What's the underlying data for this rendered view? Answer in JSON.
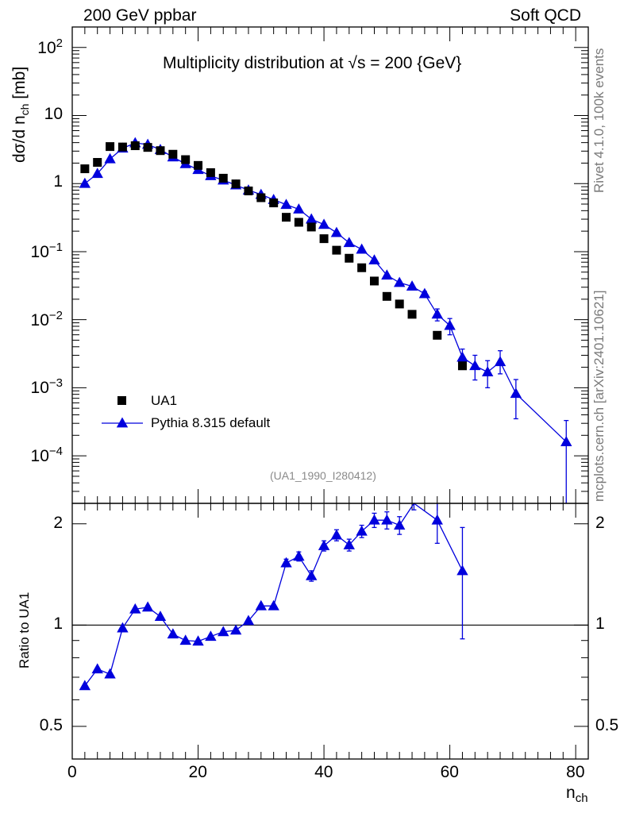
{
  "header": {
    "left": "200 GeV ppbar",
    "right": "Soft QCD"
  },
  "side_labels": {
    "top": "Rivet 4.1.0,  100k events",
    "bottom": "mcplots.cern.ch [arXiv:2401.10621]"
  },
  "chart_data": [
    {
      "type": "scatter",
      "panel": "main",
      "title": "Multiplicity distribution at √s = 200 {GeV}",
      "ylabel": "dσ/d n_ch [mb]",
      "ylabel_main": "dσ/d n",
      "ylabel_sub": "ch",
      "ylabel_unit": "[mb]",
      "yscale": "log",
      "ylim": [
        2e-05,
        200
      ],
      "xlim": [
        0,
        82
      ],
      "analysis_tag": "(UA1_1990_I280412)",
      "ytick_labels": [
        {
          "base": "10",
          "exp": "2",
          "value": 100
        },
        {
          "base": "10",
          "exp": "",
          "value": 10
        },
        {
          "base": "1",
          "exp": "",
          "value": 1
        },
        {
          "base": "10",
          "exp": "−1",
          "value": 0.1
        },
        {
          "base": "10",
          "exp": "−2",
          "value": 0.01
        },
        {
          "base": "10",
          "exp": "−3",
          "value": 0.001
        },
        {
          "base": "10",
          "exp": "−4",
          "value": 0.0001
        }
      ],
      "legend": [
        {
          "label": "UA1",
          "marker": "square",
          "color": "#000000"
        },
        {
          "label": "Pythia 8.315 default",
          "marker": "triangle",
          "color": "#0000dd"
        }
      ],
      "series": [
        {
          "name": "UA1",
          "x": [
            2,
            4,
            6,
            8,
            10,
            12,
            14,
            16,
            18,
            20,
            22,
            24,
            26,
            28,
            30,
            32,
            34,
            36,
            38,
            40,
            42,
            44,
            46,
            48,
            50,
            52,
            54,
            58,
            62
          ],
          "values": [
            1.65,
            2.05,
            3.5,
            3.45,
            3.6,
            3.4,
            3.05,
            2.7,
            2.25,
            1.85,
            1.45,
            1.2,
            0.99,
            0.78,
            0.62,
            0.52,
            0.32,
            0.27,
            0.23,
            0.155,
            0.105,
            0.08,
            0.058,
            0.037,
            0.022,
            0.017,
            0.012,
            0.0059,
            0.0021
          ]
        },
        {
          "name": "Pythia 8.315 default",
          "x": [
            2,
            4,
            6,
            8,
            10,
            12,
            14,
            16,
            18,
            20,
            22,
            24,
            26,
            28,
            30,
            32,
            34,
            36,
            38,
            40,
            42,
            44,
            46,
            48,
            50,
            52,
            54,
            56,
            58,
            60,
            62,
            64,
            66,
            68,
            70.5,
            78.5
          ],
          "values": [
            1.0,
            1.4,
            2.3,
            3.3,
            3.95,
            3.75,
            3.15,
            2.45,
            1.95,
            1.6,
            1.3,
            1.12,
            0.95,
            0.8,
            0.69,
            0.58,
            0.49,
            0.42,
            0.3,
            0.25,
            0.19,
            0.135,
            0.108,
            0.075,
            0.045,
            0.035,
            0.031,
            0.024,
            0.012,
            0.0082,
            0.0028,
            0.0021,
            0.0017,
            0.0024,
            0.00082,
            0.00016
          ],
          "err_low": [
            0,
            0,
            0,
            0,
            0,
            0,
            0,
            0,
            0,
            0,
            0,
            0,
            0,
            0,
            0,
            0,
            0,
            0,
            0,
            0,
            0,
            0,
            0,
            0,
            0,
            0,
            0,
            0.002,
            0.0024,
            0.0022,
            0.0009,
            0.0008,
            0.0007,
            0.0008,
            0.00047,
            0.000148
          ],
          "err_high": [
            0,
            0,
            0,
            0,
            0,
            0,
            0,
            0,
            0,
            0,
            0,
            0,
            0,
            0,
            0,
            0,
            0,
            0,
            0,
            0,
            0,
            0,
            0,
            0,
            0,
            0,
            0,
            0.002,
            0.0024,
            0.0022,
            0.0009,
            0.0009,
            0.0008,
            0.0011,
            0.0005,
            0.00017
          ]
        }
      ]
    },
    {
      "type": "line",
      "panel": "ratio",
      "ylabel": "Ratio to UA1",
      "xlabel": "n_ch",
      "xlabel_main": "n",
      "xlabel_sub": "ch",
      "yscale": "log",
      "ylim": [
        0.4,
        2.3
      ],
      "xlim": [
        0,
        82
      ],
      "xtick_labels": [
        "0",
        "20",
        "40",
        "60",
        "80"
      ],
      "xtick_values": [
        0,
        20,
        40,
        60,
        80
      ],
      "ytick_labels": [
        "2",
        "1",
        "0.5"
      ],
      "ytick_values": [
        2,
        1,
        0.5
      ],
      "reference_line": 1,
      "series": [
        {
          "name": "Pythia 8.315 default",
          "x": [
            2,
            4,
            6,
            8,
            10,
            12,
            14,
            16,
            18,
            20,
            22,
            24,
            26,
            28,
            30,
            32,
            34,
            36,
            38,
            40,
            42,
            44,
            46,
            48,
            50,
            52,
            54.3,
            58,
            62
          ],
          "values": [
            0.66,
            0.74,
            0.715,
            0.98,
            1.115,
            1.13,
            1.06,
            0.94,
            0.9,
            0.895,
            0.925,
            0.955,
            0.965,
            1.03,
            1.14,
            1.14,
            1.53,
            1.6,
            1.4,
            1.72,
            1.85,
            1.73,
            1.9,
            2.05,
            2.05,
            1.98,
            2.35,
            2.05,
            1.45
          ],
          "err_low": [
            0,
            0,
            0,
            0,
            0,
            0,
            0,
            0,
            0,
            0,
            0,
            0,
            0,
            0,
            0,
            0,
            0.04,
            0.05,
            0.05,
            0.06,
            0.07,
            0.07,
            0.08,
            0.1,
            0.12,
            0.12,
            0.15,
            0.3,
            0.54
          ],
          "err_high": [
            0,
            0,
            0,
            0,
            0,
            0,
            0,
            0,
            0,
            0,
            0,
            0,
            0,
            0,
            0,
            0,
            0.04,
            0.05,
            0.05,
            0.06,
            0.07,
            0.07,
            0.08,
            0.1,
            0.12,
            0.12,
            0.15,
            0.3,
            0.5
          ]
        }
      ]
    }
  ]
}
